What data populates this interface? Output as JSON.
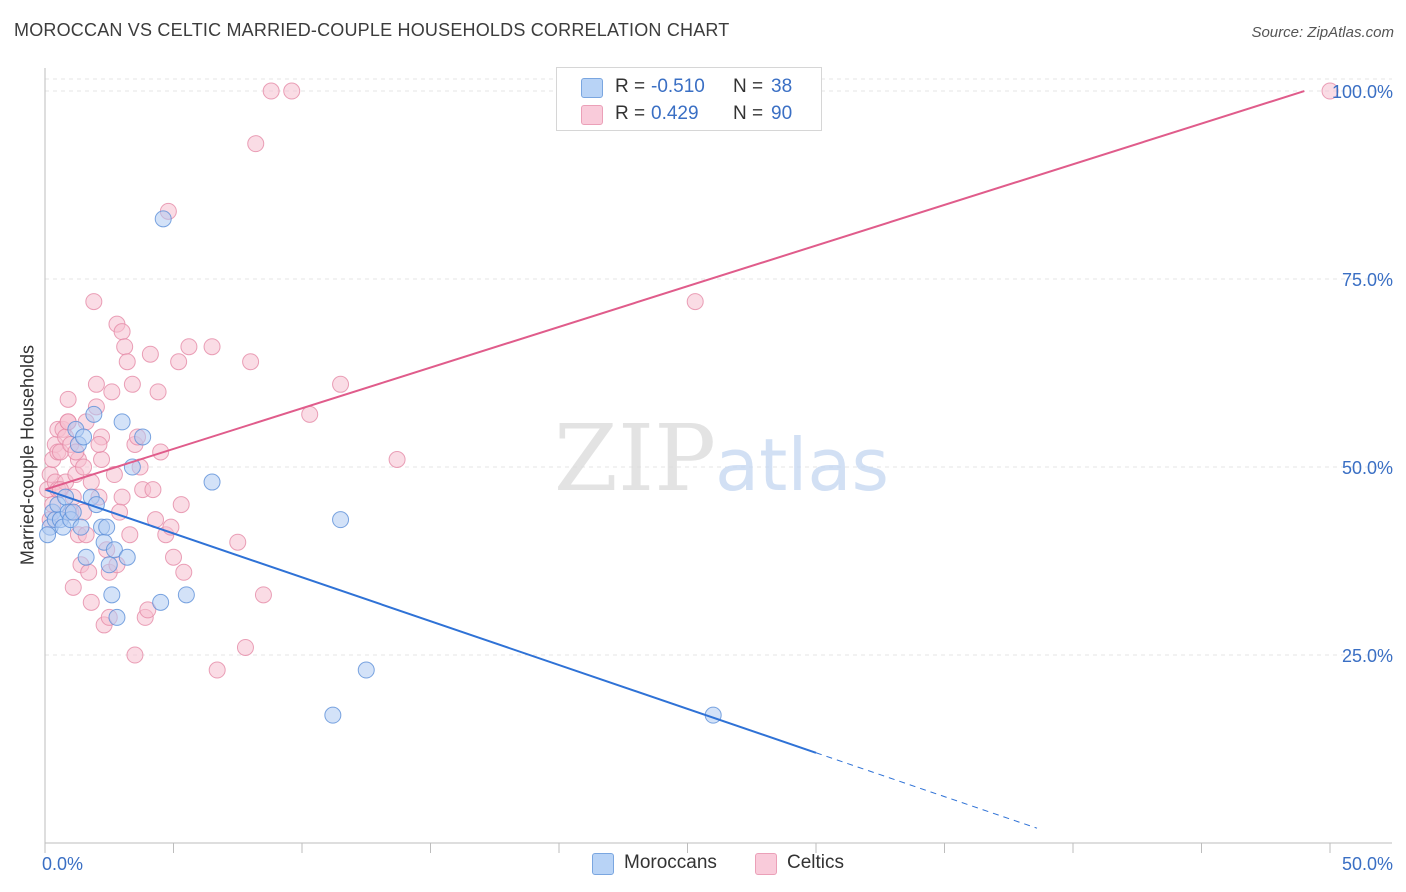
{
  "chart_data": {
    "type": "scatter",
    "title": "MOROCCAN VS CELTIC MARRIED-COUPLE HOUSEHOLDS CORRELATION CHART",
    "source": "Source: ZipAtlas.com",
    "ylabel": "Married-couple Households",
    "xlabel": "",
    "xlim": [
      0,
      50
    ],
    "ylim": [
      0,
      102
    ],
    "x_tick_labels": [
      "0.0%",
      "50.0%"
    ],
    "y_tick_values": [
      25,
      50,
      75,
      100
    ],
    "y_tick_labels": [
      "25.0%",
      "50.0%",
      "75.0%",
      "100.0%"
    ],
    "watermark": {
      "zip": "ZIP",
      "atlas": "atlas"
    },
    "legend": {
      "r_label": "R =",
      "n_label": "N =",
      "entries": [
        {
          "name": "Moroccans",
          "r": "-0.510",
          "n": "38",
          "color": "#aecbf3"
        },
        {
          "name": "Celtics",
          "r": "0.429",
          "n": "90",
          "color": "#f6bfd0"
        }
      ]
    },
    "series": [
      {
        "name": "Moroccans",
        "color": "#aecbf3",
        "edge": "#5b8ed8",
        "line_color": "#2f72d6",
        "trend": {
          "x0": 0,
          "y0": 47,
          "x1": 30,
          "y1": 12,
          "dash_to_x": 38.6
        },
        "points": [
          [
            0.2,
            42
          ],
          [
            0.3,
            44
          ],
          [
            0.4,
            43
          ],
          [
            0.5,
            45
          ],
          [
            0.6,
            43
          ],
          [
            0.7,
            42
          ],
          [
            0.8,
            46
          ],
          [
            0.9,
            44
          ],
          [
            1.0,
            43
          ],
          [
            1.1,
            44
          ],
          [
            1.2,
            55
          ],
          [
            1.3,
            53
          ],
          [
            1.4,
            42
          ],
          [
            1.5,
            54
          ],
          [
            1.6,
            38
          ],
          [
            1.8,
            46
          ],
          [
            1.9,
            57
          ],
          [
            2.0,
            45
          ],
          [
            2.2,
            42
          ],
          [
            2.3,
            40
          ],
          [
            2.4,
            42
          ],
          [
            2.5,
            37
          ],
          [
            2.6,
            33
          ],
          [
            2.7,
            39
          ],
          [
            2.8,
            30
          ],
          [
            3.0,
            56
          ],
          [
            3.2,
            38
          ],
          [
            3.4,
            50
          ],
          [
            3.8,
            54
          ],
          [
            4.5,
            32
          ],
          [
            4.6,
            83
          ],
          [
            5.5,
            33
          ],
          [
            6.5,
            48
          ],
          [
            11.2,
            17
          ],
          [
            11.5,
            43
          ],
          [
            12.5,
            23
          ],
          [
            26,
            17
          ],
          [
            0.1,
            41
          ]
        ]
      },
      {
        "name": "Celtics",
        "color": "#f6bfd0",
        "edge": "#e58aa6",
        "line_color": "#e05c8b",
        "trend": {
          "x0": 0,
          "y0": 47,
          "x1": 49,
          "y1": 100
        },
        "points": [
          [
            0.1,
            47
          ],
          [
            0.2,
            49
          ],
          [
            0.2,
            43
          ],
          [
            0.3,
            51
          ],
          [
            0.3,
            45
          ],
          [
            0.4,
            53
          ],
          [
            0.4,
            48
          ],
          [
            0.5,
            55
          ],
          [
            0.5,
            52
          ],
          [
            0.5,
            47
          ],
          [
            0.6,
            52
          ],
          [
            0.7,
            55
          ],
          [
            0.8,
            54
          ],
          [
            0.8,
            48
          ],
          [
            0.9,
            56
          ],
          [
            0.9,
            59
          ],
          [
            1.0,
            53
          ],
          [
            1.0,
            44
          ],
          [
            1.1,
            34
          ],
          [
            1.2,
            49
          ],
          [
            1.3,
            51
          ],
          [
            1.3,
            41
          ],
          [
            1.4,
            37
          ],
          [
            1.5,
            50
          ],
          [
            1.5,
            44
          ],
          [
            1.6,
            56
          ],
          [
            1.6,
            41
          ],
          [
            1.7,
            36
          ],
          [
            1.8,
            48
          ],
          [
            1.8,
            32
          ],
          [
            1.9,
            72
          ],
          [
            2.0,
            58
          ],
          [
            2.0,
            61
          ],
          [
            2.1,
            46
          ],
          [
            2.2,
            54
          ],
          [
            2.2,
            51
          ],
          [
            2.3,
            29
          ],
          [
            2.4,
            39
          ],
          [
            2.5,
            30
          ],
          [
            2.5,
            36
          ],
          [
            2.6,
            60
          ],
          [
            2.7,
            49
          ],
          [
            2.8,
            37
          ],
          [
            2.8,
            69
          ],
          [
            3.0,
            68
          ],
          [
            3.0,
            46
          ],
          [
            3.1,
            66
          ],
          [
            3.2,
            64
          ],
          [
            3.3,
            41
          ],
          [
            3.4,
            61
          ],
          [
            3.5,
            25
          ],
          [
            3.5,
            53
          ],
          [
            3.6,
            54
          ],
          [
            3.8,
            47
          ],
          [
            3.9,
            30
          ],
          [
            4.0,
            31
          ],
          [
            4.1,
            65
          ],
          [
            4.2,
            47
          ],
          [
            4.3,
            43
          ],
          [
            4.4,
            60
          ],
          [
            4.5,
            52
          ],
          [
            4.7,
            41
          ],
          [
            4.8,
            84
          ],
          [
            4.9,
            42
          ],
          [
            5.0,
            38
          ],
          [
            5.2,
            64
          ],
          [
            5.3,
            45
          ],
          [
            5.4,
            36
          ],
          [
            5.6,
            66
          ],
          [
            6.5,
            66
          ],
          [
            6.7,
            23
          ],
          [
            7.5,
            40
          ],
          [
            7.8,
            26
          ],
          [
            8.0,
            64
          ],
          [
            8.2,
            93
          ],
          [
            8.5,
            33
          ],
          [
            8.8,
            100
          ],
          [
            9.6,
            100
          ],
          [
            10.3,
            57
          ],
          [
            11.5,
            61
          ],
          [
            13.7,
            51
          ],
          [
            25.3,
            72
          ],
          [
            50,
            100
          ],
          [
            0.6,
            47
          ],
          [
            1.1,
            46
          ],
          [
            2.9,
            44
          ],
          [
            3.7,
            50
          ],
          [
            0.9,
            56
          ],
          [
            1.2,
            52
          ],
          [
            2.1,
            53
          ]
        ]
      }
    ]
  }
}
